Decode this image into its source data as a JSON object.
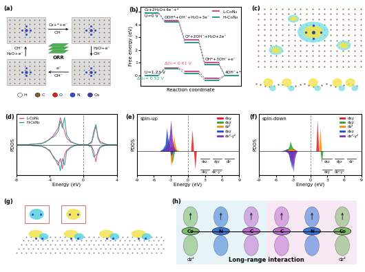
{
  "chart_data": [
    {
      "type": "line",
      "panel": "(b)",
      "xlabel": "Reaction coordinate",
      "ylabel": "Free energy (eV)",
      "ylim": [
        -0.8,
        5.4
      ],
      "yticks": [
        0,
        1,
        2,
        3,
        4,
        5
      ],
      "xlim": [
        -0.2,
        4.8
      ],
      "tick_labels": "y",
      "legend": "upper right",
      "line_style": "dashed",
      "step_labels": [
        "O₂+2H₂O+4e⁻+*",
        "OOH*+OH⁻+H₂O+3e⁻",
        "O*+2OH⁻+H₂O+2e⁻",
        "OH*+3OH⁻+e⁻",
        "4OH⁻+*"
      ],
      "potentials": [
        "U=0 V",
        "U=1.23 V"
      ],
      "series": [
        {
          "name": "L-CoN₄",
          "color": "#e0418a",
          "values": [
            4.92,
            4.3,
            2.8,
            1.0,
            0.0
          ],
          "values_at_U": [
            0.0,
            0.61,
            0.34,
            -0.23,
            0.0
          ],
          "annotation": "ΔG₁= 0.61 V"
        },
        {
          "name": "H-CoN₄",
          "color": "#1f9e89",
          "values": [
            4.92,
            4.21,
            2.6,
            0.85,
            0.0
          ],
          "values_at_U": [
            0.0,
            0.52,
            0.14,
            -0.38,
            0.0
          ],
          "annotation": "ΔG₁= 0.52 V"
        }
      ]
    },
    {
      "type": "line",
      "panel": "(d)",
      "xlabel": "Energy (eV)",
      "ylabel": "PDOS",
      "xlim": [
        -8,
        4
      ],
      "xticks": [
        -8,
        -4,
        0,
        4
      ],
      "ylim": [
        -4.5,
        4.5
      ],
      "tick_labels": "x",
      "legend": "upper left",
      "fermi_level": 0,
      "x": [
        -8,
        -7,
        -6,
        -5,
        -4.5,
        -4,
        -3.5,
        -3,
        -2.75,
        -2.5,
        -2.25,
        -2,
        -1.5,
        -1,
        -0.5,
        0,
        0.5,
        1,
        1.25,
        1.5,
        1.75,
        2,
        2.5,
        3,
        4
      ],
      "series": [
        {
          "name": "L-CoN₄",
          "color": "#e0418a",
          "values": [
            0,
            0,
            0.1,
            0.2,
            0.5,
            0.8,
            1.5,
            2.5,
            4,
            3,
            2,
            1,
            0.4,
            0.2,
            0,
            0,
            0,
            0.3,
            1.5,
            2.8,
            1.2,
            0.5,
            0.2,
            0,
            0
          ],
          "values_down": [
            0,
            0,
            -0.1,
            -0.2,
            -0.4,
            -1,
            -1.8,
            -3,
            -2,
            -3.5,
            -1.5,
            -0.8,
            -0.3,
            -0.1,
            0,
            0,
            0,
            -0.2,
            -1,
            -2.5,
            -0.8,
            -0.3,
            -0.1,
            0,
            0
          ]
        },
        {
          "name": "H-CoN₄",
          "color": "#1f9e89",
          "values": [
            0,
            0,
            0.1,
            0.2,
            0.4,
            0.9,
            1.2,
            2,
            3.5,
            2.5,
            4,
            1.5,
            0.5,
            0.2,
            0,
            0,
            0,
            0.5,
            2,
            3,
            1,
            0.3,
            0.1,
            0,
            0
          ],
          "values_down": [
            0,
            0,
            -0.1,
            -0.2,
            -0.5,
            -0.8,
            -2,
            -2.5,
            -3.8,
            -2,
            -3,
            -1,
            -0.4,
            -0.1,
            0,
            0,
            0,
            -0.4,
            -1.8,
            -1.5,
            -1.2,
            -0.4,
            -0.1,
            0,
            0
          ]
        }
      ]
    },
    {
      "type": "area",
      "panel": "(e)",
      "title": "spin-up",
      "xlabel": "Energy (eV)",
      "ylabel": "PDOS",
      "xlim": [
        -9,
        9
      ],
      "xticks": [
        -9,
        -6,
        -3,
        0,
        3,
        6,
        9
      ],
      "ylim": [
        -3,
        4.5
      ],
      "tick_labels": "x",
      "legend": "upper right",
      "fermi_level": 0,
      "levels_upper": [
        "dxz",
        "dyz",
        "dz²"
      ],
      "levels_lower": [
        "dxy",
        "dx²-y²"
      ],
      "x": [
        -9,
        -5,
        -4.5,
        -4,
        -3.75,
        -3.5,
        -3.25,
        -3,
        -2.75,
        -2.5,
        -2.25,
        -2,
        -1.5,
        0,
        0.5,
        0.75,
        1,
        1.25,
        1.5,
        1.75,
        2,
        2.25,
        2.5,
        3,
        9
      ],
      "series": [
        {
          "name": "dxy",
          "color": "#e41a1c",
          "values": [
            0,
            0,
            0.2,
            0.3,
            0.5,
            0.4,
            0.3,
            0.5,
            0.6,
            0.3,
            0.2,
            0,
            0,
            0,
            0,
            2.6,
            0,
            -2.2,
            0,
            0,
            0,
            0,
            0,
            0,
            0
          ]
        },
        {
          "name": "dyz",
          "color": "#2ca02c",
          "values": [
            0,
            0,
            0.1,
            0.3,
            0.8,
            1.2,
            0.6,
            -0.8,
            -1.5,
            -0.5,
            0.2,
            0,
            0,
            0,
            0,
            0,
            0,
            0,
            0,
            0,
            0,
            0,
            0,
            0,
            0
          ]
        },
        {
          "name": "dz²",
          "color": "#ff8c00",
          "values": [
            0,
            0,
            0,
            0.1,
            0.3,
            0.5,
            1,
            -1.8,
            -1,
            2,
            0.8,
            0.2,
            0,
            0,
            0,
            0,
            0,
            0,
            0,
            0,
            0,
            0,
            0,
            0,
            0
          ]
        },
        {
          "name": "dxz",
          "color": "#1f4fd1",
          "values": [
            0,
            0,
            0.2,
            0.8,
            2.8,
            1.5,
            0.5,
            -0.6,
            -0.3,
            0.2,
            0,
            0,
            0,
            0,
            0,
            0,
            0,
            0,
            0,
            0,
            0,
            0,
            0,
            0,
            0
          ]
        },
        {
          "name": "dx²-y²",
          "color": "#7b2fbe",
          "values": [
            0,
            0,
            0,
            0.2,
            0.5,
            1,
            2,
            3.8,
            1.5,
            0.6,
            0.2,
            0,
            0,
            0,
            0,
            0,
            0,
            0,
            0,
            0,
            0,
            0,
            0,
            0,
            0
          ]
        }
      ]
    },
    {
      "type": "area",
      "panel": "(f)",
      "title": "spin-down",
      "xlabel": "Energy (eV)",
      "ylabel": "PDOS",
      "xlim": [
        -9,
        9
      ],
      "xticks": [
        -9,
        -6,
        -3,
        0,
        3,
        6,
        9
      ],
      "ylim": [
        -3,
        4.5
      ],
      "tick_labels": "x",
      "legend": "upper right",
      "fermi_level": 0,
      "levels_upper": [
        "dxz",
        "dyz",
        "dz²"
      ],
      "levels_lower": [
        "dxy",
        "dx²-y²"
      ],
      "x": [
        -9,
        -5,
        -4.5,
        -4,
        -3.75,
        -3.5,
        -3.25,
        -3,
        -2.75,
        -2.5,
        -2.25,
        -2,
        -1.5,
        0,
        0.5,
        0.75,
        1,
        1.25,
        1.5,
        1.75,
        2,
        2.25,
        2.5,
        3,
        9
      ],
      "series": [
        {
          "name": "dxy",
          "color": "#e41a1c",
          "values": [
            0,
            0,
            0.1,
            0.2,
            0.3,
            0.3,
            0.2,
            0.3,
            0.2,
            0.1,
            0,
            0,
            0,
            0,
            0,
            0,
            0,
            3.8,
            0,
            0,
            0,
            0,
            0,
            0,
            0
          ]
        },
        {
          "name": "dyz",
          "color": "#2ca02c",
          "values": [
            0,
            0,
            0,
            0.2,
            0.5,
            1.2,
            0.6,
            0.3,
            0,
            0,
            0,
            0,
            0,
            0,
            0,
            0,
            0,
            0,
            0,
            0,
            -1.5,
            0,
            0,
            0,
            0
          ]
        },
        {
          "name": "dz²",
          "color": "#ff8c00",
          "values": [
            0,
            0,
            0,
            0.1,
            0.2,
            0.3,
            0.2,
            0.2,
            0.1,
            0,
            0,
            0,
            0,
            0,
            0,
            0,
            0,
            0,
            0,
            2.8,
            0,
            0,
            0,
            0,
            0
          ]
        },
        {
          "name": "dxz",
          "color": "#1f4fd1",
          "values": [
            0,
            0,
            0.1,
            0.3,
            -0.5,
            -1,
            -2.2,
            -0.8,
            -0.3,
            0,
            0,
            0,
            0,
            0,
            0,
            0,
            0,
            0,
            0,
            0,
            0,
            0,
            0,
            0,
            0
          ]
        },
        {
          "name": "dx²-y²",
          "color": "#7b2fbe",
          "values": [
            0,
            0,
            0,
            -0.2,
            -0.5,
            -1.5,
            -0.8,
            -2.6,
            -1,
            -0.3,
            0,
            0,
            0,
            0,
            0,
            0,
            0,
            0,
            0,
            0,
            0,
            0,
            0,
            0,
            0
          ]
        }
      ]
    }
  ],
  "diagrams": {
    "a": {
      "panel": "(a)",
      "center": "ORR",
      "top": [
        "O₂+*+e⁻",
        "OH⁻"
      ],
      "right": [
        "H₂O+e⁻",
        "OH⁻"
      ],
      "bottom": [
        "e⁻",
        "OH⁻"
      ],
      "left": [
        "OH⁻",
        "H₂O+e⁻"
      ],
      "legend": [
        {
          "name": "H",
          "color": "#f5f5f5"
        },
        {
          "name": "C",
          "color": "#8b5a2b"
        },
        {
          "name": "O",
          "color": "#e41a1c"
        },
        {
          "name": "N",
          "color": "#2b4fd8"
        },
        {
          "name": "Co",
          "color": "#3f3fa8"
        }
      ]
    },
    "c": {
      "panel": "(c)"
    },
    "g": {
      "panel": "(g)"
    },
    "h": {
      "panel": "(h)",
      "caption": "Long-range interaction",
      "orbital": "dz²",
      "atoms": [
        {
          "name": "Co",
          "color": "#7fb86a"
        },
        {
          "name": "N",
          "color": "#3a78d8"
        },
        {
          "name": "C",
          "color": "#c070d0"
        },
        {
          "name": "C",
          "color": "#c070d0"
        },
        {
          "name": "N",
          "color": "#3a78d8"
        },
        {
          "name": "Co",
          "color": "#7fb86a"
        }
      ]
    }
  }
}
